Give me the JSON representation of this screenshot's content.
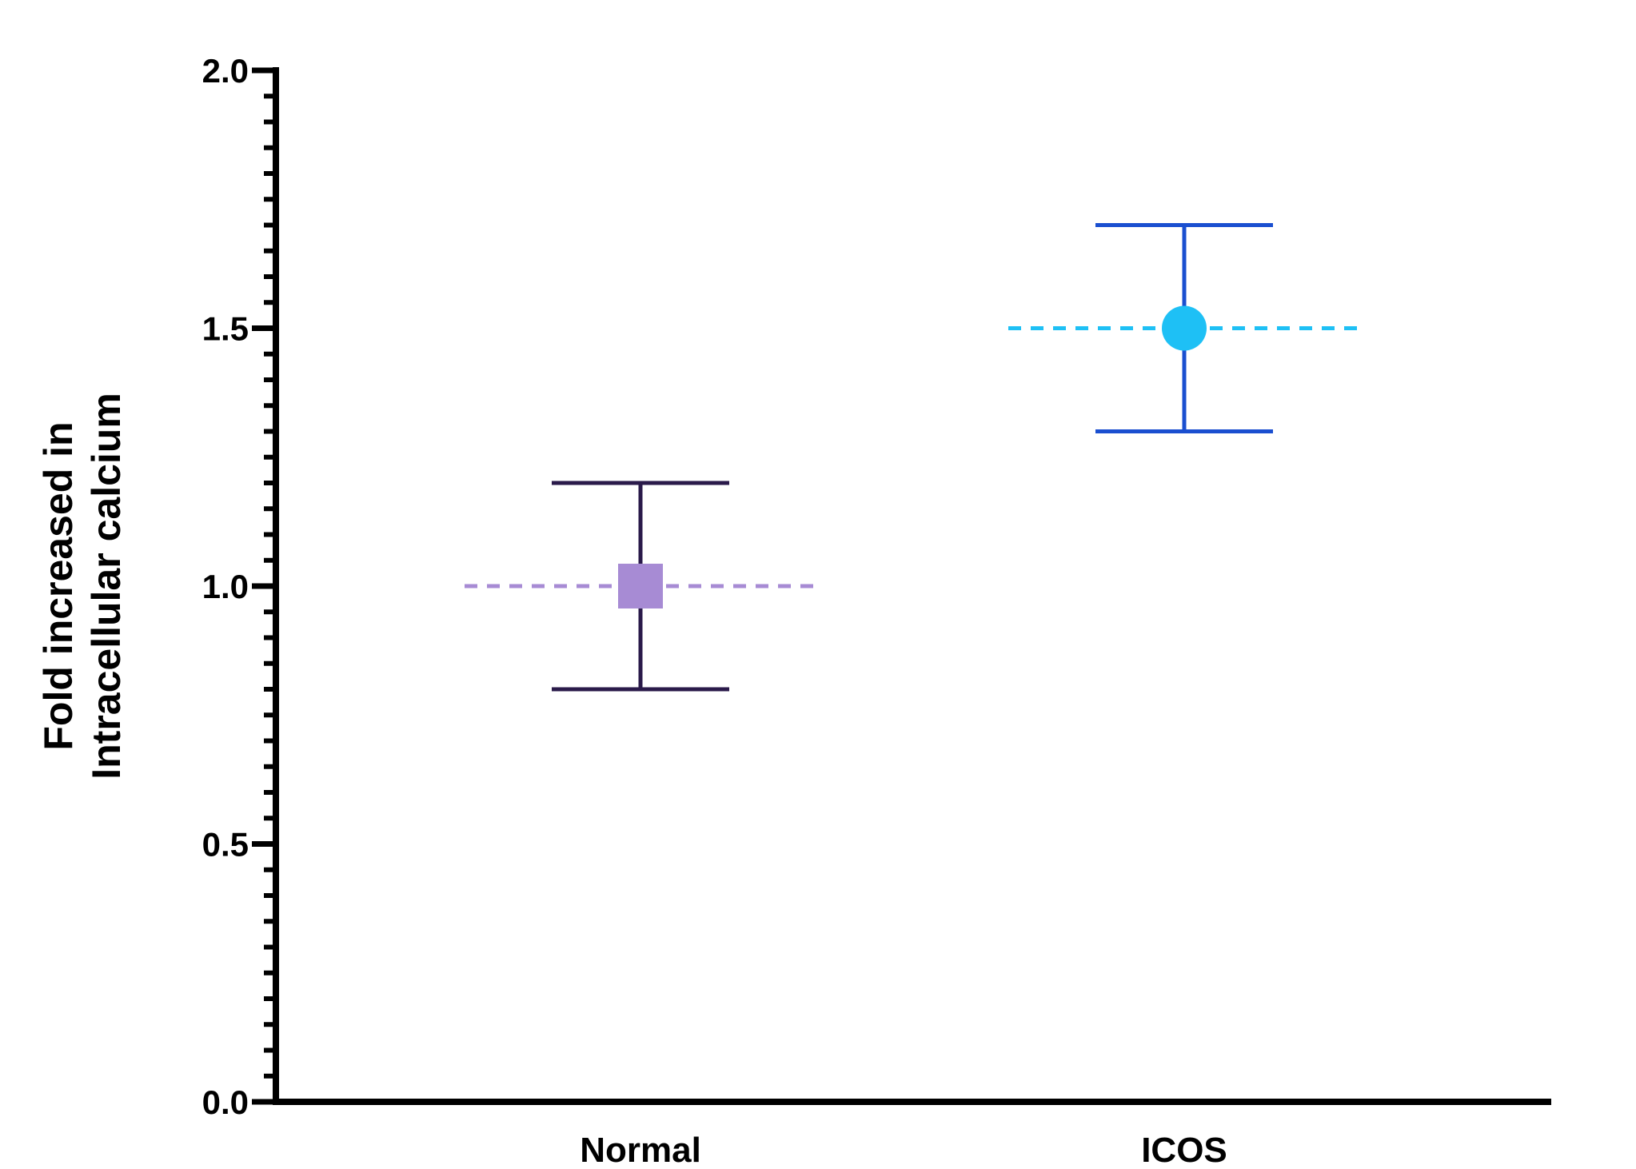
{
  "chart_data": {
    "type": "scatter",
    "title": "",
    "xlabel": "",
    "ylabel_lines": [
      "Fold increased in",
      "Intracellular calcium"
    ],
    "categories": [
      "Normal",
      "ICOS"
    ],
    "ylim": [
      0,
      2.0
    ],
    "yticks": [
      "0.0",
      "0.5",
      "1.0",
      "1.5",
      "2.0"
    ],
    "ytick_values": [
      0,
      0.5,
      1.0,
      1.5,
      2.0
    ],
    "minor_tick_step": 0.05,
    "grid": false,
    "legend": "none",
    "series": [
      {
        "category": "Normal",
        "mean": 1.0,
        "error_low": 0.8,
        "error_high": 1.2,
        "marker": "square",
        "marker_color": "#a78bd4",
        "error_color": "#2a1a4a",
        "mean_line_color": "#a78bd4"
      },
      {
        "category": "ICOS",
        "mean": 1.5,
        "error_low": 1.3,
        "error_high": 1.7,
        "marker": "circle",
        "marker_color": "#1ec0f5",
        "error_color": "#1a4fd0",
        "mean_line_color": "#1ec0f5"
      }
    ]
  }
}
